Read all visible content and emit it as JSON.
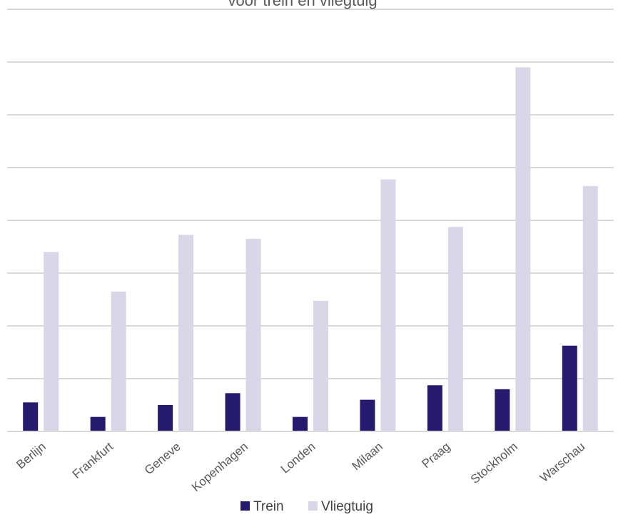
{
  "chart_data": {
    "type": "bar",
    "title": "voor trein en vliegtuig",
    "categories": [
      "Berlijn",
      "Frankfurt",
      "Geneve",
      "Kopenhagen",
      "Londen",
      "Milaan",
      "Praag",
      "Stockholm",
      "Warschau"
    ],
    "series": [
      {
        "name": "Trein",
        "color": "#251a6e",
        "values": [
          22,
          11,
          20,
          29,
          11,
          24,
          35,
          32,
          65
        ]
      },
      {
        "name": "Vliegtuig",
        "color": "#d9d6e8",
        "values": [
          136,
          106,
          149,
          146,
          99,
          191,
          155,
          276,
          186
        ]
      }
    ],
    "ylim": [
      0,
      320
    ],
    "grid": true,
    "legend_position": "bottom"
  }
}
